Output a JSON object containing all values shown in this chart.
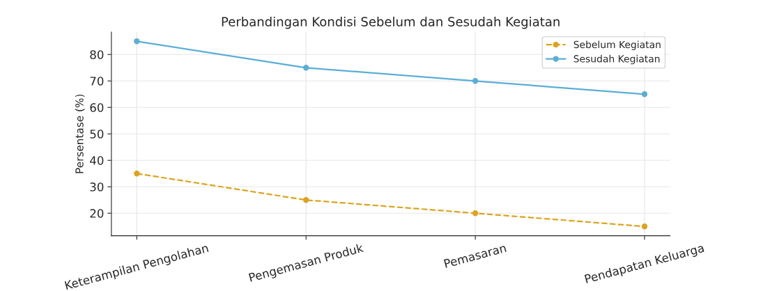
{
  "chart_data": {
    "type": "line",
    "title": "Perbandingan Kondisi Sebelum dan Sesudah Kegiatan",
    "ylabel": "Persentase (%)",
    "categories": [
      "Keterampilan Pengolahan",
      "Pengemasan Produk",
      "Pemasaran",
      "Pendapatan Keluarga"
    ],
    "series": [
      {
        "name": "Sebelum Kegiatan",
        "color": "#e0a21b",
        "values": [
          35,
          25,
          20,
          15
        ],
        "line_style": "dashed"
      },
      {
        "name": "Sesudah Kegiatan",
        "color": "#5aaed6",
        "values": [
          85,
          75,
          70,
          65
        ],
        "line_style": "solid"
      }
    ],
    "ylim": [
      11.5,
      88.5
    ],
    "yticks": [
      20,
      30,
      40,
      50,
      60,
      70,
      80
    ],
    "grid": true,
    "legend": "top right",
    "marker": "circle"
  }
}
